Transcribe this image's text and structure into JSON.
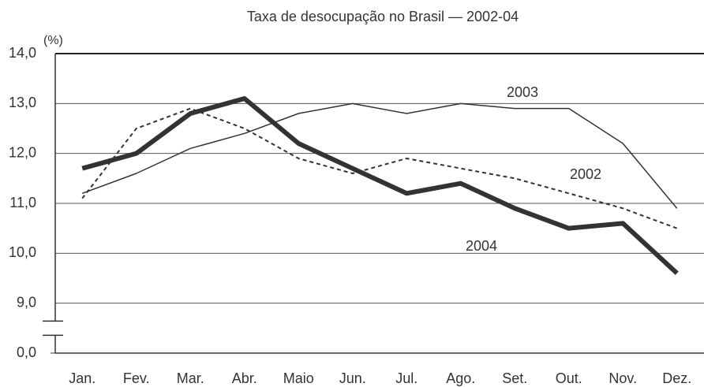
{
  "chart_data": {
    "type": "line",
    "title": "Taxa de desocupação no Brasil — 2002-04",
    "y_label": "(%)",
    "categories": [
      "Jan.",
      "Fev.",
      "Mar.",
      "Abr.",
      "Maio",
      "Jun.",
      "Jul.",
      "Ago.",
      "Set.",
      "Out.",
      "Nov.",
      "Dez."
    ],
    "series": [
      {
        "name": "2002",
        "color": "#333333",
        "style": "dashed",
        "values": [
          11.1,
          12.5,
          12.9,
          12.5,
          11.9,
          11.6,
          11.9,
          11.7,
          11.5,
          11.2,
          10.9,
          10.5
        ]
      },
      {
        "name": "2003",
        "color": "#333333",
        "style": "thin",
        "values": [
          11.2,
          11.6,
          12.1,
          12.4,
          12.8,
          13.0,
          12.8,
          13.0,
          12.9,
          12.9,
          12.2,
          10.9
        ]
      },
      {
        "name": "2004",
        "color": "#333333",
        "style": "bold",
        "values": [
          11.7,
          12.0,
          12.8,
          13.1,
          12.2,
          11.7,
          11.2,
          11.4,
          10.9,
          10.5,
          10.6,
          9.6
        ]
      }
    ],
    "ylim": [
      0,
      14
    ],
    "yticks": [
      {
        "value": 0,
        "label": "0,0"
      },
      {
        "value": 9,
        "label": "9,0"
      },
      {
        "value": 10,
        "label": "10,0"
      },
      {
        "value": 11,
        "label": "11,0"
      },
      {
        "value": 12,
        "label": "12,0"
      },
      {
        "value": 13,
        "label": "13,0"
      },
      {
        "value": 14,
        "label": "14,0"
      }
    ],
    "axis_break": true,
    "grid": true
  }
}
